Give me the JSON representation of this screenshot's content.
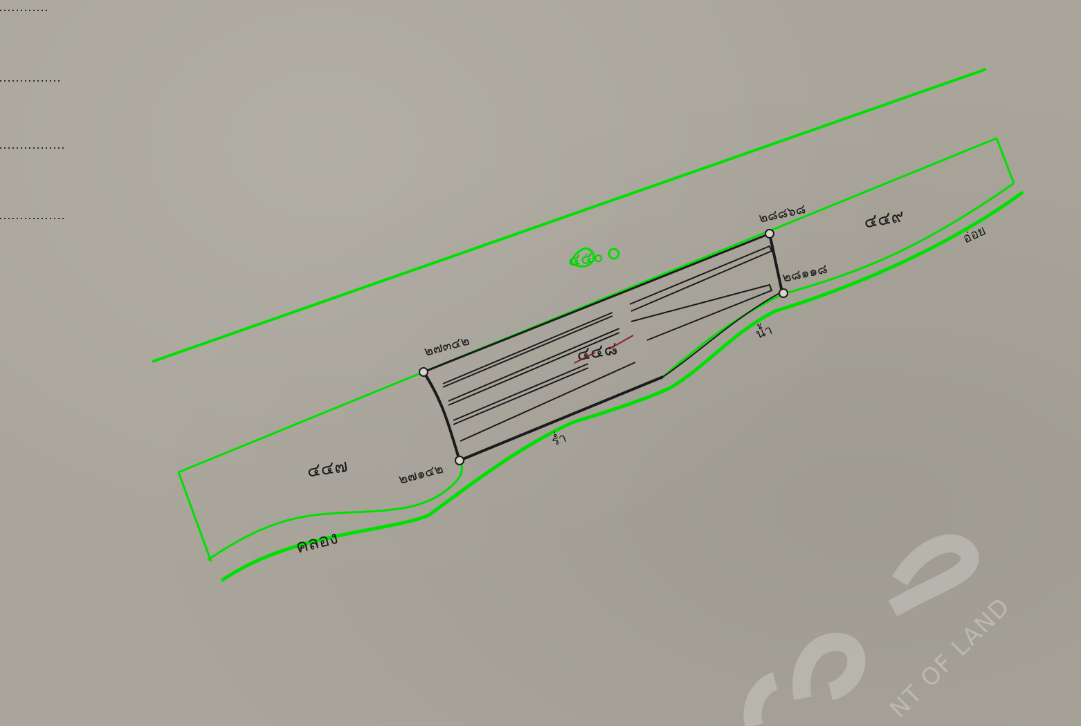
{
  "map": {
    "parcels": {
      "north": "๔๕๐",
      "west": "๔๔๗",
      "east": "๔๔๙",
      "center": "๔๔๘"
    },
    "markers": {
      "top_left": "๒๗๓๔๒",
      "bottom_left": "๒๗๑๔๒",
      "top_right": "๒๘๘๖๘",
      "bottom_right": "๒๘๑๑๘"
    },
    "labels": {
      "canal": "คลอง",
      "water": "น้ำ",
      "margin_lower": "ร่ำ",
      "right_edge": "อ่อย"
    },
    "watermark_text": "NT OF LAND",
    "colors": {
      "highlight": "#00e000",
      "ink": "#1b1b1b",
      "paper": "#a9a59b"
    }
  }
}
